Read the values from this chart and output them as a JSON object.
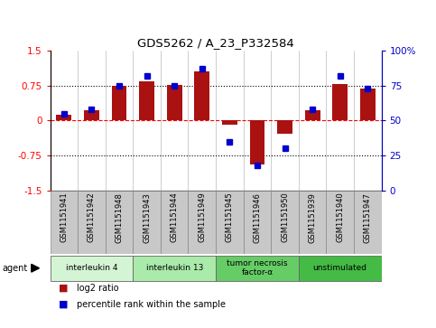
{
  "title": "GDS5262 / A_23_P332584",
  "samples": [
    "GSM1151941",
    "GSM1151942",
    "GSM1151948",
    "GSM1151943",
    "GSM1151944",
    "GSM1151949",
    "GSM1151945",
    "GSM1151946",
    "GSM1151950",
    "GSM1151939",
    "GSM1151940",
    "GSM1151947"
  ],
  "log2_ratio": [
    0.12,
    0.22,
    0.75,
    0.85,
    0.76,
    1.05,
    -0.08,
    -0.95,
    -0.28,
    0.22,
    0.78,
    0.68
  ],
  "percentile": [
    55,
    58,
    75,
    82,
    75,
    87,
    35,
    18,
    30,
    58,
    82,
    73
  ],
  "agents": [
    {
      "label": "interleukin 4",
      "start": 0,
      "end": 3,
      "color": "#d4f5d4"
    },
    {
      "label": "interleukin 13",
      "start": 3,
      "end": 6,
      "color": "#aaeaaa"
    },
    {
      "label": "tumor necrosis\nfactor-α",
      "start": 6,
      "end": 9,
      "color": "#66cc66"
    },
    {
      "label": "unstimulated",
      "start": 9,
      "end": 12,
      "color": "#44bb44"
    }
  ],
  "bar_color": "#aa1111",
  "dot_color": "#0000cc",
  "ylim": [
    -1.5,
    1.5
  ],
  "yticks_left": [
    -1.5,
    -0.75,
    0.0,
    0.75,
    1.5
  ],
  "yticks_right": [
    0,
    25,
    50,
    75,
    100
  ],
  "background_color": "#ffffff",
  "legend_log2": "log2 ratio",
  "legend_pct": "percentile rank within the sample",
  "tick_box_color": "#c8c8c8",
  "tick_box_edge": "#888888"
}
